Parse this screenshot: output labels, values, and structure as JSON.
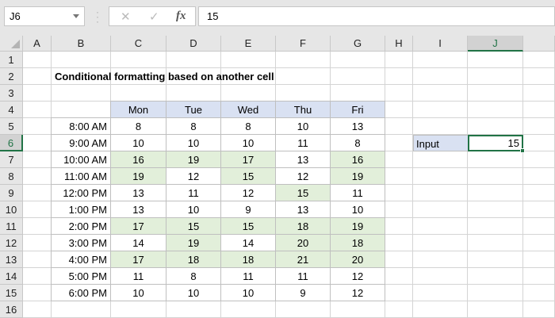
{
  "namebox": {
    "value": "J6"
  },
  "formula_bar": {
    "value": "15",
    "cancel_icon": "✕",
    "enter_icon": "✓",
    "fx_label": "fx"
  },
  "columns": [
    "A",
    "B",
    "C",
    "D",
    "E",
    "F",
    "G",
    "H",
    "I",
    "J"
  ],
  "selected_column": "J",
  "selected_row": 6,
  "rows": 16,
  "title": "Conditional formatting based on another cell",
  "table": {
    "days": [
      "Mon",
      "Tue",
      "Wed",
      "Thu",
      "Fri"
    ],
    "times": [
      "8:00 AM",
      "9:00 AM",
      "10:00 AM",
      "11:00 AM",
      "12:00 PM",
      "1:00 PM",
      "2:00 PM",
      "3:00 PM",
      "4:00 PM",
      "5:00 PM",
      "6:00 PM"
    ],
    "values": [
      [
        8,
        8,
        8,
        10,
        13
      ],
      [
        10,
        10,
        10,
        11,
        8
      ],
      [
        16,
        19,
        17,
        13,
        16
      ],
      [
        19,
        12,
        15,
        12,
        19
      ],
      [
        13,
        11,
        12,
        15,
        11
      ],
      [
        13,
        10,
        9,
        13,
        10
      ],
      [
        17,
        15,
        15,
        18,
        19
      ],
      [
        14,
        19,
        14,
        20,
        18
      ],
      [
        17,
        18,
        18,
        21,
        20
      ],
      [
        11,
        8,
        11,
        11,
        12
      ],
      [
        10,
        10,
        10,
        9,
        12
      ]
    ]
  },
  "input": {
    "label": "Input",
    "value": "15"
  },
  "colors": {
    "highlight": "#e2efda",
    "header_fill": "#d9e1f2",
    "selection": "#217346"
  }
}
